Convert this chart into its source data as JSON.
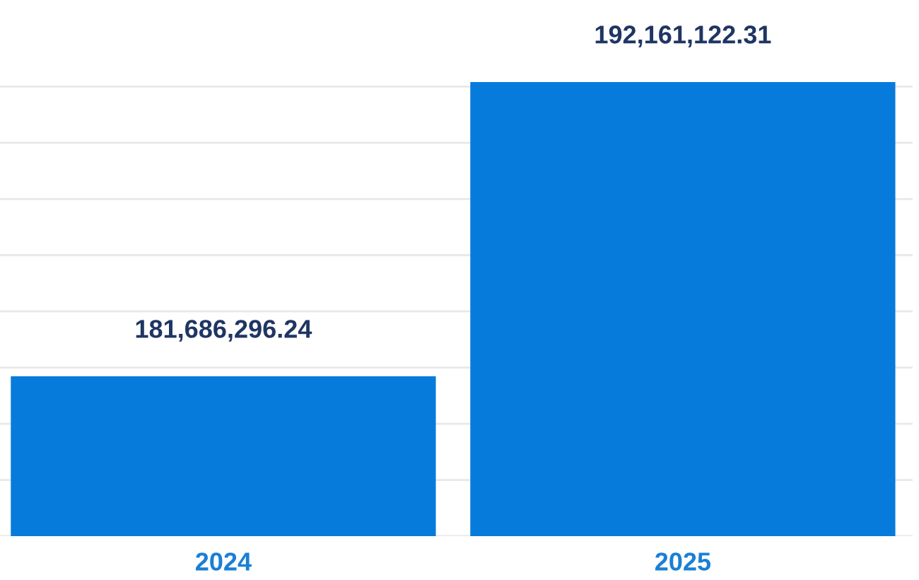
{
  "chart_data": {
    "type": "bar",
    "categories": [
      "2024",
      "2025"
    ],
    "values": [
      181686296.24,
      192161122.31
    ],
    "value_labels": [
      "181,686,296.24",
      "192,161,122.31"
    ],
    "color": "#077bdc",
    "ylim": [
      176000000,
      192161122.31
    ],
    "yticks": [
      {
        "value": 176000000,
        "label": null
      },
      {
        "value": 178000000,
        "label": null
      },
      {
        "value": 180000000,
        "label": null
      },
      {
        "value": 182000000,
        "label": null
      },
      {
        "value": 184000000,
        "label": null
      },
      {
        "value": 186000000,
        "label": null
      },
      {
        "value": 188000000,
        "label": null
      },
      {
        "value": 190000000,
        "label": null
      },
      {
        "value": 192000000,
        "label": null
      }
    ],
    "grid": "y",
    "tick_labels": "x",
    "legend": false
  }
}
